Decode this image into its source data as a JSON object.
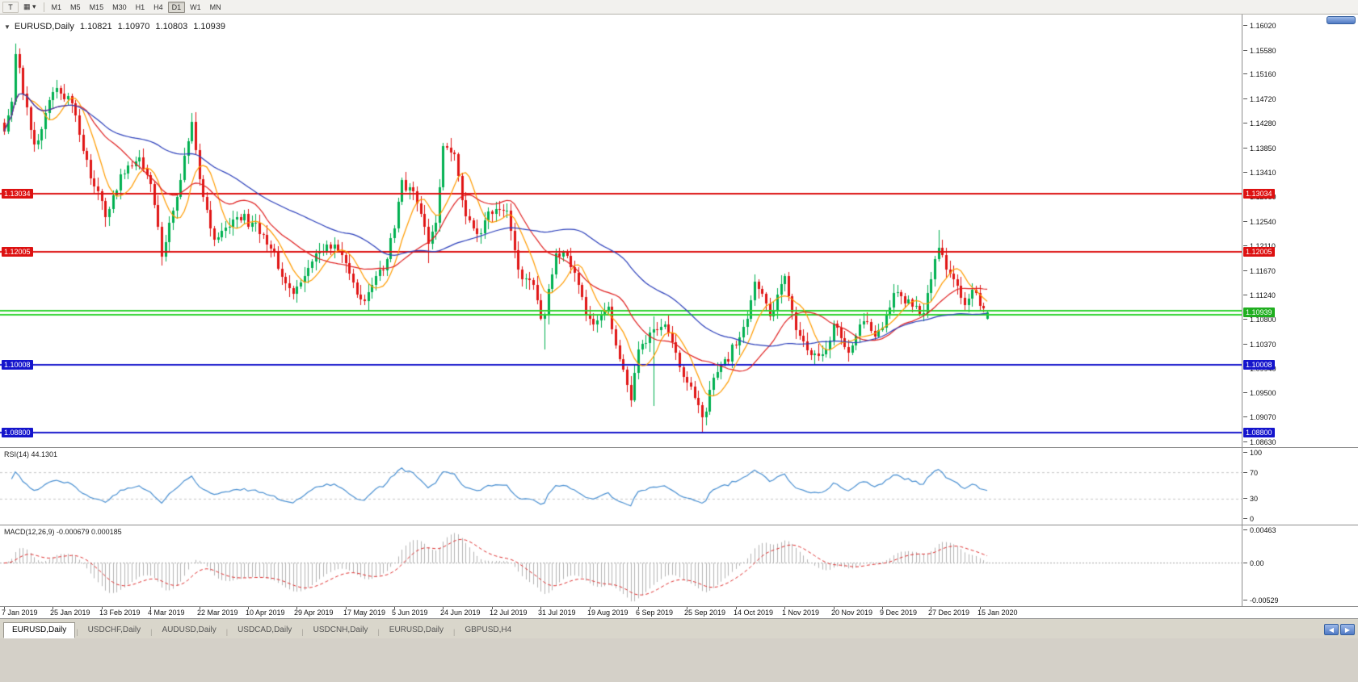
{
  "toolbar": {
    "left_buttons": [
      {
        "name": "pointer-tool-button",
        "label": "T"
      },
      {
        "name": "chart-layout-button",
        "label": "▦ ▾"
      }
    ],
    "timeframes": [
      "M1",
      "M5",
      "M15",
      "M30",
      "H1",
      "H4",
      "D1",
      "W1",
      "MN"
    ],
    "active_timeframe": "D1"
  },
  "chart": {
    "symbol_period": "EURUSD,Daily",
    "ohlc": {
      "open": "1.10821",
      "high": "1.10970",
      "low": "1.10803",
      "close": "1.10939"
    }
  },
  "price_axis_ticks": [
    "1.16020",
    "1.15580",
    "1.15160",
    "1.14720",
    "1.14280",
    "1.13850",
    "1.13410",
    "1.12980",
    "1.12540",
    "1.12110",
    "1.11670",
    "1.11240",
    "1.10800",
    "1.10370",
    "1.09940",
    "1.09500",
    "1.09070",
    "1.08630"
  ],
  "rsi": {
    "label": "RSI(14) 44.1301",
    "ticks": [
      {
        "v": 100,
        "label": "100"
      },
      {
        "v": 70,
        "label": "70"
      },
      {
        "v": 30,
        "label": "30"
      },
      {
        "v": 0,
        "label": "0"
      }
    ],
    "levels": [
      70,
      30
    ],
    "color": "#4a90d2",
    "level_color": "#c8c8c8"
  },
  "macd": {
    "label": "MACD(12,26,9) -0.000679 0.000185",
    "ticks": [
      {
        "v": 0.00463,
        "label": "0.00463"
      },
      {
        "v": 0,
        "label": "0.00"
      },
      {
        "v": -0.00529,
        "label": "-0.00529"
      }
    ],
    "range": [
      -0.00529,
      0.00463
    ],
    "hist_color": "#b4b4b4",
    "signal_color": "#e03030"
  },
  "date_axis": [
    "7 Jan 2019",
    "25 Jan 2019",
    "13 Feb 2019",
    "4 Mar 2019",
    "22 Mar 2019",
    "10 Apr 2019",
    "29 Apr 2019",
    "17 May 2019",
    "5 Jun 2019",
    "24 Jun 2019",
    "12 Jul 2019",
    "31 Jul 2019",
    "19 Aug 2019",
    "6 Sep 2019",
    "25 Sep 2019",
    "14 Oct 2019",
    "1 Nov 2019",
    "20 Nov 2019",
    "9 Dec 2019",
    "27 Dec 2019",
    "15 Jan 2020"
  ],
  "label_step_bars": 13,
  "tabs": [
    "EURUSD,Daily",
    "USDCHF,Daily",
    "AUDUSD,Daily",
    "USDCAD,Daily",
    "USDCNH,Daily",
    "EURUSD,Daily",
    "GBPUSD,H4"
  ],
  "active_tab_index": 0,
  "chart_data": {
    "type": "candlestick",
    "symbol": "EURUSD",
    "period": "Daily",
    "bars": 263,
    "visible_price_range": [
      1.0863,
      1.1602
    ],
    "up_color": "#00b050",
    "down_color": "#e01515",
    "price_anchors": [
      [
        0,
        1.1415
      ],
      [
        2,
        1.1468
      ],
      [
        3,
        1.1552
      ],
      [
        5,
        1.1482
      ],
      [
        8,
        1.1392
      ],
      [
        11,
        1.1448
      ],
      [
        14,
        1.1492
      ],
      [
        17,
        1.1478
      ],
      [
        20,
        1.1408
      ],
      [
        23,
        1.1332
      ],
      [
        27,
        1.1262
      ],
      [
        31,
        1.1338
      ],
      [
        36,
        1.1368
      ],
      [
        39,
        1.1322
      ],
      [
        42,
        1.1192
      ],
      [
        46,
        1.1298
      ],
      [
        50,
        1.1432
      ],
      [
        53,
        1.1298
      ],
      [
        56,
        1.1222
      ],
      [
        60,
        1.1246
      ],
      [
        64,
        1.1268
      ],
      [
        68,
        1.1232
      ],
      [
        72,
        1.1202
      ],
      [
        77,
        1.1126
      ],
      [
        80,
        1.1158
      ],
      [
        83,
        1.1198
      ],
      [
        88,
        1.1214
      ],
      [
        92,
        1.1162
      ],
      [
        95,
        1.1116
      ],
      [
        98,
        1.1142
      ],
      [
        101,
        1.1168
      ],
      [
        104,
        1.1242
      ],
      [
        106,
        1.1328
      ],
      [
        109,
        1.1308
      ],
      [
        113,
        1.1216
      ],
      [
        115,
        1.1252
      ],
      [
        117,
        1.1388
      ],
      [
        120,
        1.1374
      ],
      [
        122,
        1.1292
      ],
      [
        126,
        1.1232
      ],
      [
        130,
        1.1268
      ],
      [
        134,
        1.1274
      ],
      [
        138,
        1.1152
      ],
      [
        141,
        1.1142
      ],
      [
        143,
        1.1082
      ],
      [
        144,
        1.1088
      ],
      [
        147,
        1.1198
      ],
      [
        150,
        1.1194
      ],
      [
        153,
        1.1142
      ],
      [
        156,
        1.1082
      ],
      [
        159,
        1.1088
      ],
      [
        161,
        1.1104
      ],
      [
        165,
        1.0992
      ],
      [
        167,
        1.0938
      ],
      [
        169,
        1.1028
      ],
      [
        173,
        1.1064
      ],
      [
        176,
        1.1072
      ],
      [
        180,
        1.0996
      ],
      [
        184,
        1.0942
      ],
      [
        186,
        1.0908
      ],
      [
        189,
        1.0978
      ],
      [
        193,
        1.1006
      ],
      [
        197,
        1.1068
      ],
      [
        200,
        1.1148
      ],
      [
        204,
        1.1086
      ],
      [
        208,
        1.1158
      ],
      [
        212,
        1.1052
      ],
      [
        217,
        1.1016
      ],
      [
        221,
        1.1074
      ],
      [
        225,
        1.1022
      ],
      [
        229,
        1.1078
      ],
      [
        233,
        1.1062
      ],
      [
        237,
        1.1128
      ],
      [
        241,
        1.1116
      ],
      [
        245,
        1.1092
      ],
      [
        249,
        1.1208
      ],
      [
        252,
        1.1162
      ],
      [
        256,
        1.1106
      ],
      [
        259,
        1.1128
      ],
      [
        262,
        1.10939
      ]
    ],
    "special_bars": {
      "3": {
        "high": 1.157
      },
      "50": {
        "high": 1.1448
      },
      "95": {
        "low": 1.1107
      },
      "113": {
        "low": 1.1181
      },
      "144": {
        "low": 1.1027
      },
      "167": {
        "low": 1.0926
      },
      "173": {
        "low": 1.0927,
        "high": 1.1087
      },
      "186": {
        "low": 1.0879
      },
      "249": {
        "high": 1.1239
      },
      "262": {
        "open": 1.10821,
        "high": 1.1097,
        "low": 1.10803,
        "close": 1.10939
      }
    },
    "moving_averages": [
      {
        "period": 8,
        "color": "#ff9c00"
      },
      {
        "period": 20,
        "color": "#e02020"
      },
      {
        "period": 50,
        "color": "#2b3fbb"
      }
    ],
    "horizontal_lines": [
      {
        "price": 1.13034,
        "color": "#dd1111",
        "width": 2,
        "label": "1.13034"
      },
      {
        "price": 1.12005,
        "color": "#dd1111",
        "width": 2,
        "label": "1.12005"
      },
      {
        "price": 1.1097,
        "color": "#2fd32f",
        "width": 2,
        "label": ""
      },
      {
        "price": 1.1089,
        "color": "#2fd32f",
        "width": 2,
        "label": ""
      },
      {
        "price": 1.10008,
        "color": "#1515cc",
        "width": 2,
        "label": "1.10008"
      },
      {
        "price": 1.088,
        "color": "#1515cc",
        "width": 2,
        "label": "1.08800"
      }
    ],
    "bid_tag": {
      "price": 1.10939,
      "label": "1.10939",
      "color": "#1fae1f"
    },
    "indicators": [
      {
        "name": "RSI",
        "period": 14,
        "current": 44.1301
      },
      {
        "name": "MACD",
        "fast": 12,
        "slow": 26,
        "signal": 9,
        "current_main": -0.000679,
        "current_signal": 0.000185
      }
    ]
  }
}
